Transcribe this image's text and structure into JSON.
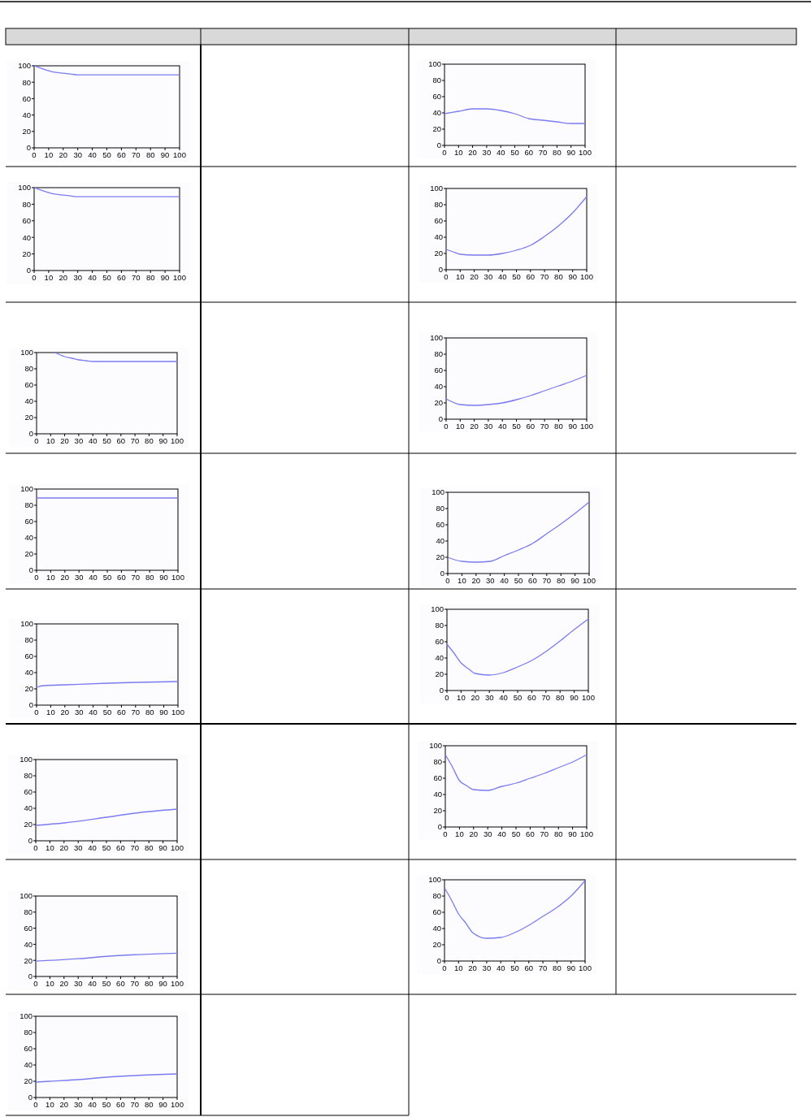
{
  "chart_data": [
    {
      "type": "line",
      "x": [
        0,
        5,
        10,
        15,
        20,
        25,
        30,
        36,
        100
      ],
      "values": [
        100,
        97,
        94,
        92,
        91,
        90,
        89,
        89,
        89
      ],
      "color": "#7b7bf0",
      "xlim": [
        0,
        100
      ],
      "ylim": [
        0,
        100
      ],
      "xticks": [
        0,
        10,
        20,
        30,
        40,
        50,
        60,
        70,
        80,
        90,
        100
      ],
      "yticks": [
        0,
        20,
        40,
        60,
        80,
        100
      ]
    },
    {
      "type": "line",
      "x": [
        0,
        10,
        20,
        25,
        30,
        40,
        50,
        60,
        70,
        80,
        90,
        100
      ],
      "values": [
        39,
        42,
        45,
        45,
        45,
        43,
        39,
        33,
        31,
        29,
        27,
        27
      ],
      "color": "#7b7bf0",
      "xlim": [
        0,
        100
      ],
      "ylim": [
        0,
        100
      ],
      "xticks": [
        0,
        10,
        20,
        30,
        40,
        50,
        60,
        70,
        80,
        90,
        100
      ],
      "yticks": [
        0,
        20,
        40,
        60,
        80,
        100
      ]
    },
    {
      "type": "line",
      "x": [
        0,
        5,
        10,
        15,
        20,
        25,
        30,
        36,
        100
      ],
      "values": [
        100,
        97,
        94,
        92,
        91,
        90,
        89,
        89,
        89
      ],
      "color": "#7b7bf0",
      "xlim": [
        0,
        100
      ],
      "ylim": [
        0,
        100
      ],
      "xticks": [
        0,
        10,
        20,
        30,
        40,
        50,
        60,
        70,
        80,
        90,
        100
      ],
      "yticks": [
        0,
        20,
        40,
        60,
        80,
        100
      ]
    },
    {
      "type": "line",
      "x": [
        0,
        5,
        10,
        20,
        30,
        40,
        50,
        60,
        70,
        80,
        90,
        100
      ],
      "values": [
        25,
        22,
        19,
        18,
        18,
        20,
        24,
        30,
        41,
        54,
        70,
        90
      ],
      "color": "#7b7bf0",
      "xlim": [
        0,
        100
      ],
      "ylim": [
        0,
        100
      ],
      "xticks": [
        0,
        10,
        20,
        30,
        40,
        50,
        60,
        70,
        80,
        90,
        100
      ],
      "yticks": [
        0,
        20,
        40,
        60,
        80,
        100
      ]
    },
    {
      "type": "line",
      "x": [
        13,
        17,
        20,
        25,
        30,
        35,
        40,
        100
      ],
      "values": [
        100,
        97,
        95,
        93,
        91,
        90,
        89,
        89
      ],
      "color": "#7b7bf0",
      "xlim": [
        0,
        100
      ],
      "ylim": [
        0,
        100
      ],
      "xticks": [
        0,
        10,
        20,
        30,
        40,
        50,
        60,
        70,
        80,
        90,
        100
      ],
      "yticks": [
        0,
        20,
        40,
        60,
        80,
        100
      ]
    },
    {
      "type": "line",
      "x": [
        0,
        10,
        20,
        30,
        40,
        50,
        60,
        70,
        80,
        90,
        100
      ],
      "values": [
        25,
        18,
        17,
        18,
        20,
        24,
        29,
        35,
        41,
        47,
        54
      ],
      "color": "#7b7bf0",
      "xlim": [
        0,
        100
      ],
      "ylim": [
        0,
        100
      ],
      "xticks": [
        0,
        10,
        20,
        30,
        40,
        50,
        60,
        70,
        80,
        90,
        100
      ],
      "yticks": [
        0,
        20,
        40,
        60,
        80,
        100
      ]
    },
    {
      "type": "line",
      "x": [
        0,
        100
      ],
      "values": [
        89,
        89
      ],
      "color": "#7b7bf0",
      "xlim": [
        0,
        100
      ],
      "ylim": [
        0,
        100
      ],
      "xticks": [
        0,
        10,
        20,
        30,
        40,
        50,
        60,
        70,
        80,
        90,
        100
      ],
      "yticks": [
        0,
        20,
        40,
        60,
        80,
        100
      ]
    },
    {
      "type": "line",
      "x": [
        0,
        10,
        20,
        30,
        40,
        50,
        60,
        70,
        80,
        90,
        100
      ],
      "values": [
        20,
        15,
        14,
        15,
        22,
        29,
        37,
        49,
        61,
        74,
        88
      ],
      "color": "#7b7bf0",
      "xlim": [
        0,
        100
      ],
      "ylim": [
        0,
        100
      ],
      "xticks": [
        0,
        10,
        20,
        30,
        40,
        50,
        60,
        70,
        80,
        90,
        100
      ],
      "yticks": [
        0,
        20,
        40,
        60,
        80,
        100
      ]
    },
    {
      "type": "line",
      "x": [
        0,
        5,
        20,
        50,
        70,
        100
      ],
      "values": [
        22,
        24,
        25,
        27,
        28,
        29
      ],
      "color": "#7b7bf0",
      "xlim": [
        0,
        100
      ],
      "ylim": [
        0,
        100
      ],
      "xticks": [
        0,
        10,
        20,
        30,
        40,
        50,
        60,
        70,
        80,
        90,
        100
      ],
      "yticks": [
        0,
        20,
        40,
        60,
        80,
        100
      ]
    },
    {
      "type": "line",
      "x": [
        0,
        5,
        10,
        15,
        20,
        30,
        40,
        50,
        60,
        70,
        80,
        90,
        100
      ],
      "values": [
        57,
        46,
        34,
        27,
        21,
        19,
        22,
        29,
        37,
        48,
        61,
        75,
        88
      ],
      "color": "#7b7bf0",
      "xlim": [
        0,
        100
      ],
      "ylim": [
        0,
        100
      ],
      "xticks": [
        0,
        10,
        20,
        30,
        40,
        50,
        60,
        70,
        80,
        90,
        100
      ],
      "yticks": [
        0,
        20,
        40,
        60,
        80,
        100
      ]
    },
    {
      "type": "line",
      "x": [
        0,
        20,
        50,
        70,
        100
      ],
      "values": [
        19,
        22,
        29,
        34,
        39
      ],
      "color": "#7b7bf0",
      "xlim": [
        0,
        100
      ],
      "ylim": [
        0,
        100
      ],
      "xticks": [
        0,
        10,
        20,
        30,
        40,
        50,
        60,
        70,
        80,
        90,
        100
      ],
      "yticks": [
        0,
        20,
        40,
        60,
        80,
        100
      ]
    },
    {
      "type": "line",
      "x": [
        0,
        5,
        10,
        15,
        20,
        30,
        40,
        50,
        60,
        70,
        80,
        90,
        100
      ],
      "values": [
        89,
        74,
        57,
        51,
        46,
        45,
        50,
        54,
        60,
        66,
        73,
        80,
        89
      ],
      "color": "#7b7bf0",
      "xlim": [
        0,
        100
      ],
      "ylim": [
        0,
        100
      ],
      "xticks": [
        0,
        10,
        20,
        30,
        40,
        50,
        60,
        70,
        80,
        90,
        100
      ],
      "yticks": [
        0,
        20,
        40,
        60,
        80,
        100
      ]
    },
    {
      "type": "line",
      "x": [
        0,
        10,
        30,
        50,
        70,
        100
      ],
      "values": [
        19,
        20,
        22,
        25,
        27,
        29
      ],
      "color": "#7b7bf0",
      "xlim": [
        0,
        100
      ],
      "ylim": [
        0,
        100
      ],
      "xticks": [
        0,
        10,
        20,
        30,
        40,
        50,
        60,
        70,
        80,
        90,
        100
      ],
      "yticks": [
        0,
        20,
        40,
        60,
        80,
        100
      ]
    },
    {
      "type": "line",
      "x": [
        0,
        5,
        10,
        15,
        20,
        30,
        40,
        50,
        60,
        70,
        80,
        90,
        100
      ],
      "values": [
        90,
        75,
        58,
        47,
        35,
        28,
        29,
        35,
        44,
        55,
        66,
        80,
        99
      ],
      "color": "#7b7bf0",
      "xlim": [
        0,
        100
      ],
      "ylim": [
        0,
        100
      ],
      "xticks": [
        0,
        10,
        20,
        30,
        40,
        50,
        60,
        70,
        80,
        90,
        100
      ],
      "yticks": [
        0,
        20,
        40,
        60,
        80,
        100
      ]
    },
    {
      "type": "line",
      "x": [
        0,
        10,
        30,
        50,
        70,
        100
      ],
      "values": [
        19,
        20,
        22,
        25,
        27,
        29
      ],
      "color": "#7b7bf0",
      "xlim": [
        0,
        100
      ],
      "ylim": [
        0,
        100
      ],
      "xticks": [
        0,
        10,
        20,
        30,
        40,
        50,
        60,
        70,
        80,
        90,
        100
      ],
      "yticks": [
        0,
        20,
        40,
        60,
        80,
        100
      ]
    }
  ]
}
